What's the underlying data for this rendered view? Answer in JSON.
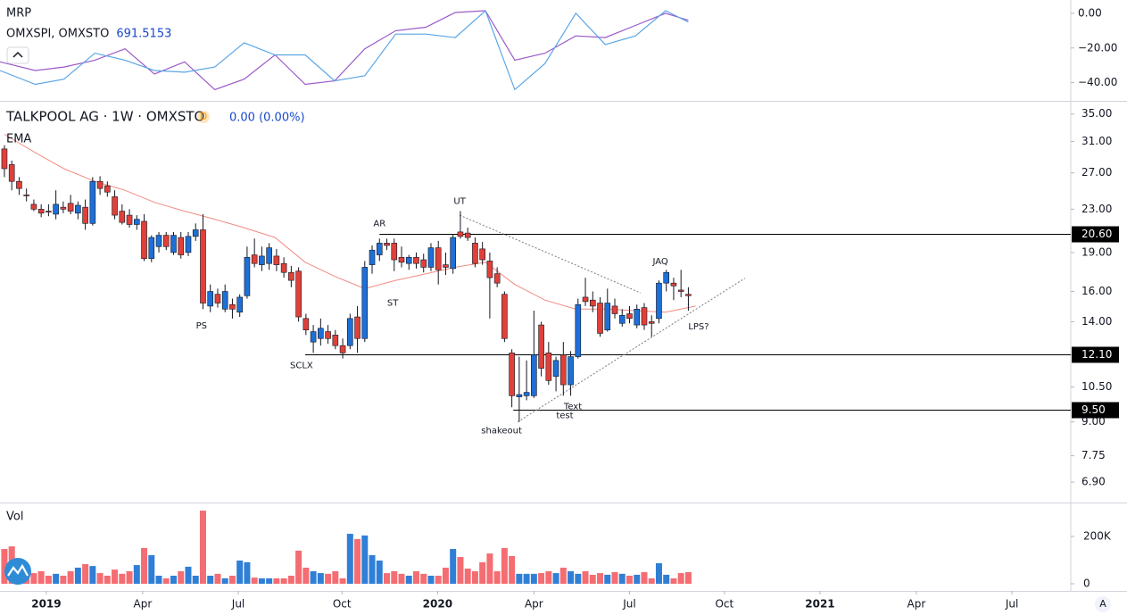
{
  "ui": {
    "auto_button": "A"
  },
  "chart_data": [
    {
      "type": "line",
      "title": "MRP",
      "subtitle": "OMXSPI, OMXSTO",
      "last_value": "691.5153",
      "ylim": [
        -50,
        7.7
      ],
      "yticks": [
        {
          "value": 0,
          "label": "0.00"
        },
        {
          "value": -20,
          "label": "−20.00"
        },
        {
          "value": -40,
          "label": "−40.00"
        }
      ],
      "series": [
        {
          "color": "#9b59c9",
          "x": [
            -0.6,
            4.2,
            8.1,
            12.3,
            16.4,
            20.4,
            24.5,
            28.6,
            32.6,
            36.8,
            40.9,
            44.9,
            49.0,
            53.2,
            57.3,
            61.3,
            65.4,
            69.4,
            73.5,
            77.7,
            81.7,
            85.8,
            89.9,
            93
          ],
          "values": [
            -28,
            -33,
            -31,
            -27,
            -20.5,
            -35,
            -28,
            -44,
            -38,
            -24,
            -41,
            -39,
            -20.5,
            -10,
            -8,
            0.5,
            1.5,
            -27,
            -23,
            -13,
            -14,
            -7,
            0,
            -4
          ]
        },
        {
          "color": "#5aa6e6",
          "x": [
            -0.6,
            4.2,
            8.1,
            12.3,
            16.4,
            20.4,
            24.5,
            28.6,
            32.6,
            36.8,
            40.9,
            44.9,
            49.0,
            53.2,
            57.3,
            61.3,
            65.4,
            69.4,
            73.5,
            77.7,
            81.7,
            85.8,
            89.9,
            93
          ],
          "values": [
            -33,
            -41,
            -38,
            -23,
            -27,
            -33,
            -34,
            -31,
            -17,
            -24,
            -24,
            -39,
            -36,
            -12,
            -12,
            -14,
            1.5,
            -44,
            -29,
            0,
            -18,
            -13,
            1.5,
            -5
          ]
        }
      ]
    },
    {
      "type": "candlestick",
      "title": "TALKPOOL AG · 1W · OMXSTO",
      "badge": "D",
      "change": "0.00 (0.00%)",
      "log_scale": true,
      "ylim": [
        6.33,
        36.8
      ],
      "yticks": [
        {
          "value": 35,
          "label": "35.00"
        },
        {
          "value": 31,
          "label": "31.00"
        },
        {
          "value": 27,
          "label": "27.00"
        },
        {
          "value": 23,
          "label": "23.00"
        },
        {
          "value": 19,
          "label": "19.00"
        },
        {
          "value": 16,
          "label": "16.00"
        },
        {
          "value": 14,
          "label": "14.00"
        },
        {
          "value": 12.1,
          "label": "12.10"
        },
        {
          "value": 10.5,
          "label": "10.50"
        },
        {
          "value": 9,
          "label": "9.00"
        },
        {
          "value": 7.75,
          "label": "7.75"
        },
        {
          "value": 6.9,
          "label": "6.90"
        }
      ],
      "xlim": [
        -0.6,
        145
      ],
      "xticks": [
        {
          "value": 5.7,
          "label": "2019"
        },
        {
          "value": 18.8,
          "label": "Apr"
        },
        {
          "value": 31.8,
          "label": "Jul"
        },
        {
          "value": 45.9,
          "label": "Oct"
        },
        {
          "value": 58.9,
          "label": "2020"
        },
        {
          "value": 72.0,
          "label": "Apr"
        },
        {
          "value": 85.0,
          "label": "Jul"
        },
        {
          "value": 97.9,
          "label": "Oct"
        },
        {
          "value": 110.9,
          "label": "2021"
        },
        {
          "value": 124.0,
          "label": "Apr"
        },
        {
          "value": 137.0,
          "label": "Jul"
        }
      ],
      "up_color": "#1e6fd6",
      "down_color": "#e0403a",
      "candles": [
        [
          30,
          30.5,
          26.5,
          27.5
        ],
        [
          28,
          28.5,
          25,
          26
        ],
        [
          26,
          26.5,
          24.5,
          25.2
        ],
        [
          24.5,
          25.2,
          23.8,
          24.4
        ],
        [
          23.5,
          24,
          22.8,
          23
        ],
        [
          23,
          23.5,
          22.2,
          22.6
        ],
        [
          22.8,
          23.5,
          22.3,
          22.7
        ],
        [
          22.5,
          25,
          22,
          23.5
        ],
        [
          23.2,
          23.8,
          22.6,
          23
        ],
        [
          23.6,
          24.5,
          22.5,
          22.8
        ],
        [
          22.6,
          23.8,
          22,
          23.4
        ],
        [
          23.2,
          24,
          21,
          21.6
        ],
        [
          21.6,
          26.5,
          21.4,
          26
        ],
        [
          26,
          26.6,
          24.5,
          25.2
        ],
        [
          25.5,
          26,
          24.3,
          24.8
        ],
        [
          24.3,
          25,
          22,
          22.4
        ],
        [
          22.8,
          23.5,
          21.5,
          21.7
        ],
        [
          22.4,
          23,
          21.2,
          21.5
        ],
        [
          21.5,
          22.4,
          21,
          22
        ],
        [
          21.8,
          22.5,
          18.3,
          18.5
        ],
        [
          18.5,
          20.5,
          18.2,
          20.3
        ],
        [
          19.5,
          20.8,
          19,
          20.5
        ],
        [
          20.5,
          20.8,
          19.2,
          19.5
        ],
        [
          19,
          20.8,
          18.8,
          20.5
        ],
        [
          20.3,
          20.8,
          18.5,
          18.8
        ],
        [
          19,
          20.8,
          18.7,
          20.4
        ],
        [
          20.4,
          21.6,
          20,
          21
        ],
        [
          21,
          22.5,
          14.8,
          15.2
        ],
        [
          15,
          16.5,
          14.6,
          16
        ],
        [
          15.8,
          16.2,
          14.9,
          15.2
        ],
        [
          14.8,
          16.5,
          14.6,
          16
        ],
        [
          15.1,
          15.5,
          14.2,
          14.8
        ],
        [
          14.6,
          15.8,
          14.3,
          15.6
        ],
        [
          15.7,
          19.5,
          15.5,
          18.6
        ],
        [
          18.8,
          20.2,
          17.8,
          18.1
        ],
        [
          18,
          19.5,
          17.5,
          18.7
        ],
        [
          18.1,
          19.8,
          17.6,
          19.4
        ],
        [
          18.7,
          19.3,
          17.5,
          18
        ],
        [
          18.1,
          18.6,
          17,
          17.4
        ],
        [
          17.4,
          17.9,
          16.3,
          16.8
        ],
        [
          17.5,
          17.8,
          14,
          14.3
        ],
        [
          14.2,
          14.5,
          13.2,
          13.5
        ],
        [
          12.8,
          13.8,
          12.2,
          13.4
        ],
        [
          13,
          14.2,
          12.6,
          13.6
        ],
        [
          13.4,
          13.8,
          12.7,
          13
        ],
        [
          13.2,
          13.5,
          12.4,
          12.6
        ],
        [
          12.6,
          13,
          11.9,
          12.2
        ],
        [
          12.6,
          14.5,
          12.4,
          14.2
        ],
        [
          14.3,
          15,
          12.2,
          13
        ],
        [
          13,
          18.3,
          12.8,
          17.8
        ],
        [
          18,
          19.6,
          17.3,
          19.2
        ],
        [
          18.8,
          20.2,
          18.3,
          19.8
        ],
        [
          19.8,
          20.2,
          19.2,
          19.6
        ],
        [
          19.8,
          20.2,
          17.5,
          18.4
        ],
        [
          18.6,
          19.5,
          17.8,
          18.2
        ],
        [
          18.1,
          18.8,
          17.6,
          18.6
        ],
        [
          18.6,
          19,
          17.7,
          18.1
        ],
        [
          18.4,
          18.9,
          17.4,
          17.8
        ],
        [
          17.8,
          19.8,
          17.5,
          19.4
        ],
        [
          19.4,
          20,
          16.5,
          17.6
        ],
        [
          18,
          19,
          17.2,
          17.8
        ],
        [
          17.7,
          20.6,
          17.3,
          20.3
        ],
        [
          20.8,
          22.8,
          20.2,
          20.4
        ],
        [
          20.7,
          21.2,
          20,
          20.3
        ],
        [
          19.8,
          20.3,
          17.8,
          18.1
        ],
        [
          19.3,
          19.9,
          18,
          18.4
        ],
        [
          18.3,
          19,
          14.2,
          17
        ],
        [
          17.3,
          17.8,
          16.3,
          16.6
        ],
        [
          15.8,
          16,
          12.8,
          13
        ],
        [
          12.2,
          12.4,
          9.6,
          10.1
        ],
        [
          10.05,
          12,
          9,
          10.15
        ],
        [
          10.1,
          11.8,
          9.9,
          10.25
        ],
        [
          10.1,
          14.7,
          10,
          12.1
        ],
        [
          13.8,
          14,
          11,
          11.4
        ],
        [
          12.2,
          12.8,
          10.6,
          10.8
        ],
        [
          11,
          12,
          10.3,
          11.8
        ],
        [
          12.1,
          12.8,
          10.1,
          10.6
        ],
        [
          10.6,
          12.3,
          10.1,
          12
        ],
        [
          12,
          15.5,
          11.9,
          15.1
        ],
        [
          15.6,
          17,
          15,
          15.3
        ],
        [
          15.4,
          16,
          14.6,
          15
        ],
        [
          15.2,
          15.6,
          13.1,
          13.3
        ],
        [
          13.5,
          16.2,
          13.4,
          15.2
        ],
        [
          15,
          15.5,
          14.2,
          14.5
        ],
        [
          13.9,
          14.8,
          13.7,
          14.4
        ],
        [
          14.5,
          15,
          13.9,
          14.2
        ],
        [
          13.8,
          15.1,
          13.6,
          14.8
        ],
        [
          14.9,
          15.2,
          13.5,
          13.8
        ],
        [
          14,
          14.4,
          13.1,
          13.9
        ],
        [
          14.2,
          16.8,
          13.9,
          16.6
        ],
        [
          16.6,
          17.6,
          16,
          17.4
        ],
        [
          16.6,
          17,
          15.4,
          16.4
        ],
        [
          16.1,
          17.6,
          15.6,
          16
        ],
        [
          15.8,
          16.3,
          14.7,
          15.7
        ]
      ],
      "ema": {
        "name": "EMA",
        "color": "#f28b82",
        "x": [
          0,
          4.2,
          8.1,
          12.3,
          16.4,
          20.4,
          24.5,
          28.6,
          32.6,
          36.8,
          40.9,
          44.9,
          49.0,
          53.2,
          57.3,
          61.3,
          65.4,
          69.4,
          73.5,
          77.7,
          81.7,
          85.8,
          89.9,
          94
        ],
        "values": [
          32,
          29.5,
          27.5,
          26,
          25,
          23.7,
          22.8,
          22,
          21.2,
          20.3,
          18.2,
          17.1,
          16.2,
          16.8,
          17.3,
          17.8,
          18.2,
          16.5,
          15.4,
          14.8,
          14.8,
          14.7,
          14.6,
          15.0
        ]
      },
      "levels": [
        {
          "value": 20.6,
          "label": "20.60",
          "start": 51
        },
        {
          "value": 12.1,
          "label": "12.10",
          "start": 40.9
        },
        {
          "value": 9.5,
          "label": "9.50",
          "start": 69.2
        }
      ],
      "trendlines": [
        {
          "x": [
            61.9,
            86.5
          ],
          "y": [
            22.4,
            15.9
          ]
        },
        {
          "x": [
            69.8,
            100.7
          ],
          "y": [
            9.0,
            16.96
          ]
        }
      ],
      "annotations": [
        {
          "text": "AR",
          "x": 51,
          "y": 21.6
        },
        {
          "text": "UT",
          "x": 61.9,
          "y": 23.8
        },
        {
          "text": "ST",
          "x": 52.8,
          "y": 15.2
        },
        {
          "text": "PS",
          "x": 26.8,
          "y": 13.76
        },
        {
          "text": "SCLX",
          "x": 40.4,
          "y": 11.53
        },
        {
          "text": "shakeout",
          "x": 67.6,
          "y": 8.65
        },
        {
          "text": "Text",
          "x": 77.3,
          "y": 9.62
        },
        {
          "text": "test",
          "x": 76.2,
          "y": 9.25
        },
        {
          "text": "JAQ",
          "x": 89.2,
          "y": 18.27
        },
        {
          "text": "LPS?",
          "x": 94.4,
          "y": 13.7
        }
      ]
    },
    {
      "type": "volume",
      "title": "Vol",
      "up_color": "#2f7fd6",
      "down_color": "#f46d72",
      "ylim": [
        0,
        330000
      ],
      "yticks": [
        0,
        {
          "value": 200000,
          "label": "200K"
        }
      ],
      "values": [
        147000,
        158000,
        68000,
        60000,
        45000,
        53000,
        34000,
        42000,
        34000,
        53000,
        68000,
        83000,
        75000,
        45000,
        34000,
        60000,
        42000,
        53000,
        79000,
        151000,
        121000,
        34000,
        23000,
        34000,
        53000,
        72000,
        34000,
        309000,
        34000,
        42000,
        23000,
        34000,
        98000,
        91000,
        26000,
        23000,
        23000,
        23000,
        23000,
        34000,
        140000,
        68000,
        53000,
        45000,
        42000,
        53000,
        23000,
        211000,
        189000,
        204000,
        121000,
        98000,
        45000,
        53000,
        42000,
        34000,
        53000,
        42000,
        34000,
        34000,
        68000,
        147000,
        113000,
        64000,
        53000,
        91000,
        128000,
        53000,
        151000,
        117000,
        42000,
        42000,
        42000,
        45000,
        53000,
        45000,
        68000,
        53000,
        42000,
        53000,
        38000,
        45000,
        38000,
        49000,
        42000,
        34000,
        38000,
        49000,
        23000,
        87000,
        38000,
        23000,
        45000,
        49000
      ]
    }
  ]
}
